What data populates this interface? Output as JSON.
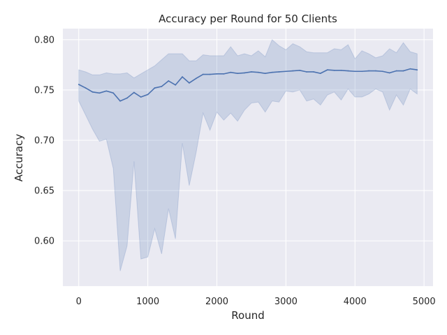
{
  "chart_data": {
    "type": "line",
    "title": "Accuracy per Round for 50 Clients",
    "xlabel": "Round",
    "ylabel": "Accuracy",
    "xlim": [
      -230,
      5130
    ],
    "ylim": [
      0.555,
      0.811
    ],
    "xticks": [
      0,
      1000,
      2000,
      3000,
      4000,
      5000
    ],
    "xtick_labels": [
      "0",
      "1000",
      "2000",
      "3000",
      "4000",
      "5000"
    ],
    "yticks": [
      0.6,
      0.65,
      0.7,
      0.75,
      0.8
    ],
    "ytick_labels": [
      "0.60",
      "0.65",
      "0.70",
      "0.75",
      "0.80"
    ],
    "grid": true,
    "x": [
      0,
      100,
      200,
      300,
      400,
      500,
      600,
      700,
      800,
      900,
      1000,
      1100,
      1200,
      1300,
      1400,
      1500,
      1600,
      1700,
      1800,
      1900,
      2000,
      2100,
      2200,
      2300,
      2400,
      2500,
      2600,
      2700,
      2800,
      2900,
      3000,
      3100,
      3200,
      3300,
      3400,
      3500,
      3600,
      3700,
      3800,
      3900,
      4000,
      4100,
      4200,
      4300,
      4400,
      4500,
      4600,
      4700,
      4800,
      4900
    ],
    "series": [
      {
        "kind": "mean",
        "color": "#4c72b0",
        "values": [
          0.7555,
          0.752,
          0.748,
          0.747,
          0.749,
          0.747,
          0.739,
          0.742,
          0.7475,
          0.743,
          0.7455,
          0.752,
          0.7535,
          0.759,
          0.755,
          0.763,
          0.757,
          0.7615,
          0.7655,
          0.7655,
          0.766,
          0.766,
          0.7675,
          0.7665,
          0.767,
          0.768,
          0.7675,
          0.7665,
          0.7675,
          0.768,
          0.7685,
          0.769,
          0.7695,
          0.768,
          0.768,
          0.7665,
          0.77,
          0.7695,
          0.7695,
          0.769,
          0.7685,
          0.7685,
          0.769,
          0.769,
          0.7685,
          0.767,
          0.769,
          0.769,
          0.771,
          0.77
        ]
      },
      {
        "kind": "band",
        "color": "#4c72b0",
        "upper": [
          0.77,
          0.768,
          0.765,
          0.765,
          0.767,
          0.766,
          0.766,
          0.767,
          0.762,
          0.766,
          0.77,
          0.774,
          0.78,
          0.786,
          0.786,
          0.786,
          0.779,
          0.779,
          0.785,
          0.784,
          0.784,
          0.784,
          0.793,
          0.784,
          0.786,
          0.784,
          0.789,
          0.783,
          0.8,
          0.794,
          0.79,
          0.796,
          0.793,
          0.788,
          0.787,
          0.787,
          0.787,
          0.791,
          0.79,
          0.795,
          0.781,
          0.789,
          0.786,
          0.782,
          0.784,
          0.791,
          0.787,
          0.797,
          0.788,
          0.786
        ],
        "lower": [
          0.739,
          0.725,
          0.711,
          0.699,
          0.701,
          0.672,
          0.57,
          0.595,
          0.679,
          0.582,
          0.584,
          0.612,
          0.587,
          0.632,
          0.602,
          0.697,
          0.655,
          0.688,
          0.727,
          0.71,
          0.728,
          0.72,
          0.727,
          0.719,
          0.73,
          0.737,
          0.738,
          0.728,
          0.739,
          0.738,
          0.749,
          0.748,
          0.75,
          0.739,
          0.741,
          0.735,
          0.745,
          0.748,
          0.74,
          0.751,
          0.743,
          0.743,
          0.746,
          0.751,
          0.748,
          0.73,
          0.745,
          0.735,
          0.751,
          0.746
        ]
      }
    ]
  }
}
